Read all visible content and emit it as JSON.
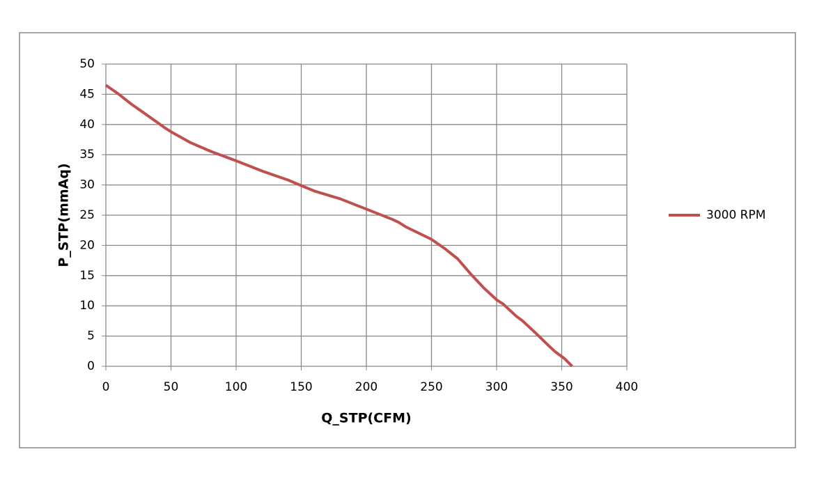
{
  "chart_data": {
    "type": "line",
    "xlabel": "Q_STP(CFM)",
    "ylabel": "P_STP(mmAq)",
    "x": [
      0,
      10,
      20,
      30,
      45,
      50,
      65,
      80,
      100,
      120,
      140,
      150,
      160,
      180,
      200,
      220,
      225,
      230,
      250,
      260,
      270,
      280,
      290,
      300,
      305,
      315,
      320,
      330,
      340,
      345,
      352,
      358
    ],
    "series": [
      {
        "name": "3000 RPM",
        "color": "#c0504d",
        "values": [
          46.5,
          45,
          43.3,
          41.8,
          39.5,
          38.8,
          37,
          35.6,
          34,
          32.3,
          30.8,
          29.9,
          29,
          27.7,
          26,
          24.3,
          23.8,
          23.1,
          21,
          19.5,
          17.8,
          15.3,
          13,
          11,
          10.3,
          8.3,
          7.5,
          5.5,
          3.4,
          2.4,
          1.3,
          0
        ]
      }
    ],
    "xlim": [
      0,
      400
    ],
    "xticks": [
      0,
      50,
      100,
      150,
      200,
      250,
      300,
      350,
      400
    ],
    "ylim": [
      0,
      50
    ],
    "yticks": [
      0,
      5,
      10,
      15,
      20,
      25,
      30,
      35,
      40,
      45,
      50
    ],
    "grid": true,
    "legend": "right"
  }
}
